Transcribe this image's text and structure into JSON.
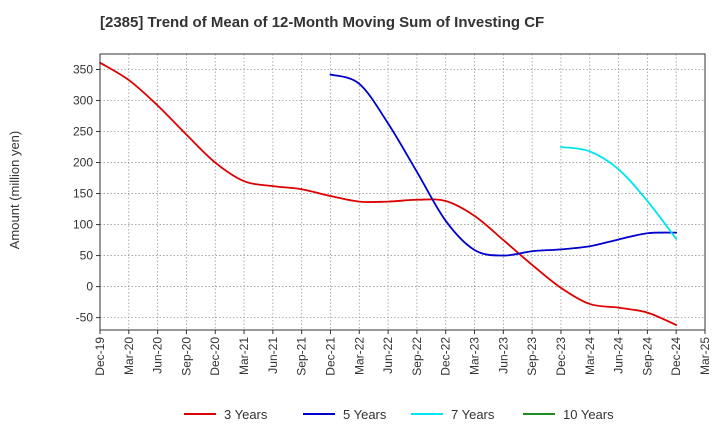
{
  "chart_data": {
    "type": "line",
    "title": "[2385]  Trend of Mean of 12-Month Moving Sum of Investing CF",
    "ylabel": "Amount (million yen)",
    "xlabel": "",
    "x_ticks": [
      "Dec-19",
      "Mar-20",
      "Jun-20",
      "Sep-20",
      "Dec-20",
      "Mar-21",
      "Jun-21",
      "Sep-21",
      "Dec-21",
      "Mar-22",
      "Jun-22",
      "Sep-22",
      "Dec-22",
      "Mar-23",
      "Jun-23",
      "Sep-23",
      "Dec-23",
      "Mar-24",
      "Jun-24",
      "Sep-24",
      "Dec-24",
      "Mar-25"
    ],
    "y_ticks": [
      350,
      300,
      250,
      200,
      150,
      100,
      50,
      0,
      -50
    ],
    "ylim": [
      -70,
      375
    ],
    "grid": true,
    "legend_position": "bottom",
    "series": [
      {
        "name": "3 Years",
        "color": "#dd0000",
        "x": [
          "Dec-19",
          "Mar-20",
          "Jun-20",
          "Sep-20",
          "Dec-20",
          "Mar-21",
          "Jun-21",
          "Sep-21",
          "Dec-21",
          "Mar-22",
          "Jun-22",
          "Sep-22",
          "Dec-22",
          "Mar-23",
          "Jun-23",
          "Sep-23",
          "Dec-23",
          "Mar-24",
          "Jun-24",
          "Sep-24",
          "Dec-24"
        ],
        "values": [
          361,
          333,
          292,
          245,
          200,
          170,
          162,
          157,
          146,
          137,
          137,
          140,
          138,
          114,
          75,
          35,
          -2,
          -28,
          -34,
          -42,
          -62
        ]
      },
      {
        "name": "5 Years",
        "color": "#0000cc",
        "x": [
          "Dec-21",
          "Mar-22",
          "Jun-22",
          "Sep-22",
          "Dec-22",
          "Mar-23",
          "Jun-23",
          "Sep-23",
          "Dec-23",
          "Mar-24",
          "Jun-24",
          "Sep-24",
          "Dec-24"
        ],
        "values": [
          342,
          327,
          263,
          185,
          106,
          59,
          50,
          57,
          60,
          65,
          76,
          86,
          87
        ]
      },
      {
        "name": "7 Years",
        "color": "#00e5ee",
        "x": [
          "Dec-23",
          "Mar-24",
          "Jun-24",
          "Sep-24",
          "Dec-24"
        ],
        "values": [
          225,
          218,
          189,
          138,
          77
        ]
      },
      {
        "name": "10 Years",
        "color": "#228b22",
        "x": [],
        "values": []
      }
    ]
  }
}
